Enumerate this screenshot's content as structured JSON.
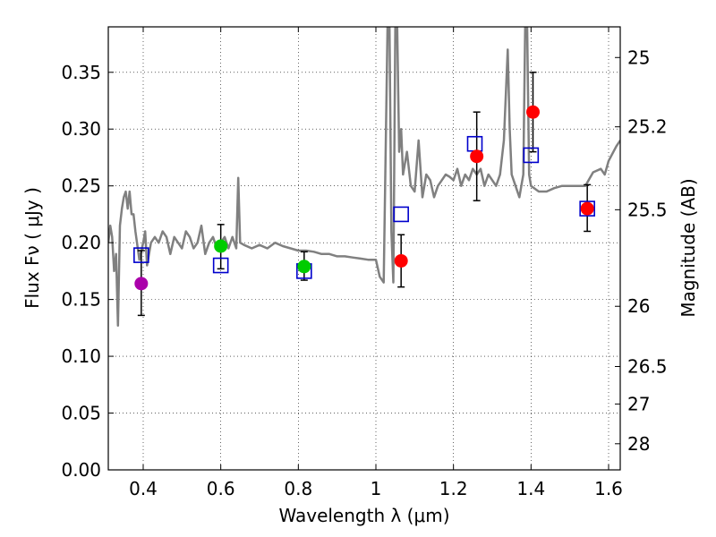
{
  "chart_data": {
    "type": "scatter",
    "title": "",
    "xlabel": "Wavelength  λ (μm)",
    "ylabel": "Flux  Fν  ( μJy )",
    "y2label": "Magnitude (AB)",
    "xlim": [
      0.31,
      1.63
    ],
    "ylim": [
      0.0,
      0.39
    ],
    "x_ticks": [
      0.4,
      0.6,
      0.8,
      1.0,
      1.2,
      1.4,
      1.6
    ],
    "x_tick_labels": [
      "0.4",
      "0.6",
      "0.8",
      "1",
      "1.2",
      "1.4",
      "1.6"
    ],
    "y_ticks": [
      0.0,
      0.05,
      0.1,
      0.15,
      0.2,
      0.25,
      0.3,
      0.35
    ],
    "y_tick_labels": [
      "0.00",
      "0.05",
      "0.10",
      "0.15",
      "0.20",
      "0.25",
      "0.30",
      "0.35"
    ],
    "y2_ticks": [
      {
        "flux": 0.363,
        "label": "25"
      },
      {
        "flux": 0.302,
        "label": "25.2"
      },
      {
        "flux": 0.229,
        "label": "25.5"
      },
      {
        "flux": 0.144,
        "label": "26"
      },
      {
        "flux": 0.091,
        "label": "26.5"
      },
      {
        "flux": 0.058,
        "label": "27"
      },
      {
        "flux": 0.023,
        "label": "28"
      }
    ],
    "grid": true,
    "colors": {
      "model": "#808080",
      "model_points": "#0000cc",
      "errorbar": "#000000",
      "purple": "#aa00aa",
      "green": "#00cc00",
      "red": "#ff0000"
    },
    "series": [
      {
        "name": "model spectrum",
        "kind": "line",
        "color": "#808080",
        "x": [
          0.31,
          0.315,
          0.32,
          0.325,
          0.33,
          0.335,
          0.34,
          0.345,
          0.35,
          0.355,
          0.36,
          0.365,
          0.37,
          0.375,
          0.38,
          0.39,
          0.4,
          0.405,
          0.41,
          0.42,
          0.43,
          0.44,
          0.45,
          0.46,
          0.47,
          0.48,
          0.49,
          0.5,
          0.51,
          0.52,
          0.53,
          0.54,
          0.55,
          0.56,
          0.57,
          0.58,
          0.59,
          0.6,
          0.61,
          0.62,
          0.63,
          0.64,
          0.645,
          0.65,
          0.66,
          0.68,
          0.7,
          0.72,
          0.74,
          0.76,
          0.78,
          0.8,
          0.82,
          0.84,
          0.86,
          0.88,
          0.9,
          0.92,
          0.94,
          0.96,
          0.98,
          1.0,
          1.01,
          1.02,
          1.03,
          1.035,
          1.04,
          1.045,
          1.05,
          1.055,
          1.06,
          1.065,
          1.07,
          1.08,
          1.09,
          1.1,
          1.11,
          1.12,
          1.13,
          1.14,
          1.15,
          1.16,
          1.17,
          1.18,
          1.19,
          1.2,
          1.21,
          1.22,
          1.23,
          1.24,
          1.25,
          1.26,
          1.27,
          1.28,
          1.29,
          1.3,
          1.31,
          1.32,
          1.33,
          1.34,
          1.345,
          1.35,
          1.36,
          1.37,
          1.38,
          1.385,
          1.39,
          1.395,
          1.4,
          1.42,
          1.44,
          1.46,
          1.48,
          1.5,
          1.52,
          1.54,
          1.56,
          1.58,
          1.59,
          1.6,
          1.62,
          1.63
        ],
        "y": [
          0.2,
          0.215,
          0.205,
          0.175,
          0.19,
          0.127,
          0.215,
          0.23,
          0.24,
          0.245,
          0.23,
          0.245,
          0.225,
          0.225,
          0.21,
          0.185,
          0.2,
          0.21,
          0.18,
          0.2,
          0.205,
          0.2,
          0.21,
          0.205,
          0.19,
          0.205,
          0.2,
          0.195,
          0.21,
          0.205,
          0.195,
          0.2,
          0.215,
          0.19,
          0.2,
          0.205,
          0.195,
          0.2,
          0.205,
          0.195,
          0.205,
          0.195,
          0.257,
          0.2,
          0.198,
          0.195,
          0.198,
          0.195,
          0.2,
          0.197,
          0.195,
          0.193,
          0.193,
          0.192,
          0.19,
          0.19,
          0.188,
          0.188,
          0.187,
          0.186,
          0.185,
          0.185,
          0.17,
          0.165,
          0.39,
          0.39,
          0.21,
          0.165,
          0.39,
          0.39,
          0.28,
          0.3,
          0.26,
          0.28,
          0.25,
          0.245,
          0.29,
          0.24,
          0.26,
          0.255,
          0.24,
          0.25,
          0.255,
          0.26,
          0.258,
          0.255,
          0.265,
          0.25,
          0.26,
          0.255,
          0.265,
          0.26,
          0.265,
          0.25,
          0.26,
          0.255,
          0.25,
          0.26,
          0.29,
          0.37,
          0.3,
          0.26,
          0.25,
          0.24,
          0.26,
          0.39,
          0.39,
          0.26,
          0.25,
          0.245,
          0.245,
          0.248,
          0.25,
          0.25,
          0.25,
          0.25,
          0.262,
          0.265,
          0.26,
          0.272,
          0.285,
          0.29
        ]
      },
      {
        "name": "model fluxes",
        "kind": "open-square",
        "color": "#0000cc",
        "x": [
          0.395,
          0.6,
          0.815,
          1.065,
          1.255,
          1.4,
          1.545
        ],
        "y": [
          0.189,
          0.18,
          0.175,
          0.225,
          0.287,
          0.277,
          0.23
        ]
      },
      {
        "name": "errorbars",
        "kind": "errorbar",
        "color": "#000000",
        "x": [
          0.395,
          0.6,
          0.815,
          1.065,
          1.26,
          1.405,
          1.545
        ],
        "y": [
          0.164,
          0.197,
          0.179,
          0.184,
          0.276,
          0.315,
          0.23
        ],
        "yerr_low": [
          0.136,
          0.177,
          0.167,
          0.161,
          0.237,
          0.28,
          0.21
        ],
        "yerr_high": [
          0.193,
          0.216,
          0.192,
          0.207,
          0.315,
          0.35,
          0.251
        ]
      },
      {
        "name": "purple point",
        "kind": "filled-circle",
        "color": "#aa00aa",
        "x": [
          0.395
        ],
        "y": [
          0.164
        ]
      },
      {
        "name": "green points",
        "kind": "filled-circle",
        "color": "#00cc00",
        "x": [
          0.6,
          0.815
        ],
        "y": [
          0.197,
          0.179
        ]
      },
      {
        "name": "red points",
        "kind": "filled-circle",
        "color": "#ff0000",
        "x": [
          1.065,
          1.26,
          1.405,
          1.545
        ],
        "y": [
          0.184,
          0.276,
          0.315,
          0.23
        ]
      }
    ]
  }
}
